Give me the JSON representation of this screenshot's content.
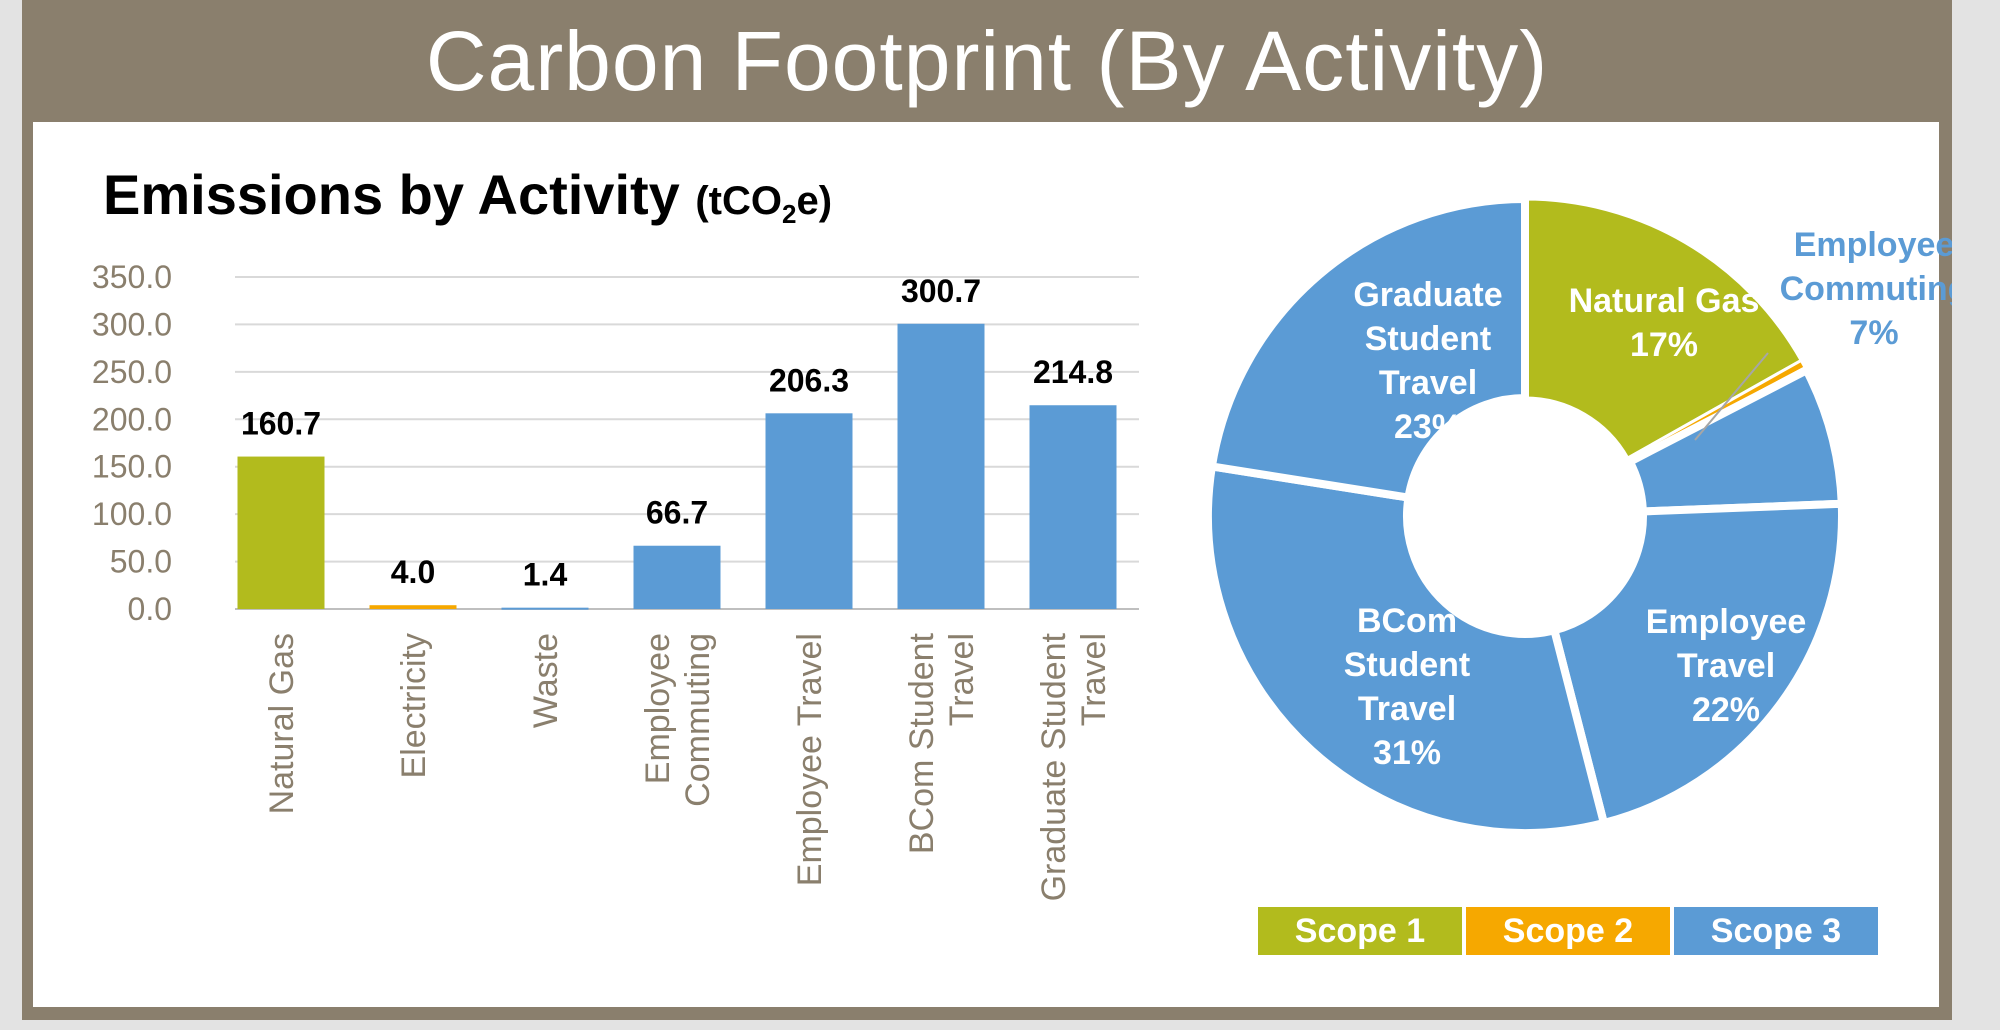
{
  "header": {
    "title": "Carbon Footprint (By Activity)"
  },
  "chart_title": {
    "main": "Emissions by Activity",
    "unit_prefix": "(tCO",
    "unit_sub": "2",
    "unit_suffix": "e)"
  },
  "colors": {
    "scope1": "#b2bb1d",
    "scope2": "#f6a800",
    "scope3": "#5b9bd5",
    "axis_text": "#8a7f6d",
    "frame": "#8a7f6d",
    "grid": "#d9d9d9"
  },
  "chart_data": [
    {
      "type": "bar",
      "title": "Emissions by Activity (tCO2e)",
      "categories": [
        "Natural Gas",
        "Electricity",
        "Waste",
        "Employee Commuting",
        "Employee Travel",
        "BCom Student Travel",
        "Graduate Student Travel"
      ],
      "category_lines": [
        [
          "Natural Gas"
        ],
        [
          "Electricity"
        ],
        [
          "Waste"
        ],
        [
          "Employee",
          "Commuting"
        ],
        [
          "Employee Travel"
        ],
        [
          "BCom Student",
          "Travel"
        ],
        [
          "Graduate Student",
          "Travel"
        ]
      ],
      "values": [
        160.7,
        4.0,
        1.4,
        66.7,
        206.3,
        300.7,
        214.8
      ],
      "value_labels": [
        "160.7",
        "4.0",
        "1.4",
        "66.7",
        "206.3",
        "300.7",
        "214.8"
      ],
      "scopes": [
        "Scope 1",
        "Scope 2",
        "Scope 3",
        "Scope 3",
        "Scope 3",
        "Scope 3",
        "Scope 3"
      ],
      "ylim": [
        0,
        350
      ],
      "yticks": [
        "0.0",
        "50.0",
        "100.0",
        "150.0",
        "200.0",
        "250.0",
        "300.0",
        "350.0"
      ],
      "grid": true
    },
    {
      "type": "pie",
      "donut": true,
      "slices": [
        {
          "name": "Natural Gas",
          "value": 160.7,
          "label_lines": [
            "Natural Gas",
            "17%"
          ],
          "scope": "Scope 1"
        },
        {
          "name": "Electricity",
          "value": 4.0,
          "label_lines": [],
          "scope": "Scope 2"
        },
        {
          "name": "Waste",
          "value": 1.4,
          "label_lines": [],
          "scope": "Scope 3"
        },
        {
          "name": "Employee Commuting",
          "value": 66.7,
          "label_lines": [
            "Employee",
            "Commuting",
            "7%"
          ],
          "scope": "Scope 3"
        },
        {
          "name": "Employee Travel",
          "value": 206.3,
          "label_lines": [
            "Employee",
            "Travel",
            "22%"
          ],
          "scope": "Scope 3"
        },
        {
          "name": "BCom Student Travel",
          "value": 300.7,
          "label_lines": [
            "BCom",
            "Student",
            "Travel",
            "31%"
          ],
          "scope": "Scope 3"
        },
        {
          "name": "Graduate Student Travel",
          "value": 214.8,
          "label_lines": [
            "Graduate",
            "Student",
            "Travel",
            "23%"
          ],
          "scope": "Scope 3"
        }
      ]
    }
  ],
  "legend": [
    {
      "label": "Scope 1",
      "color": "#b2bb1d"
    },
    {
      "label": "Scope 2",
      "color": "#f6a800"
    },
    {
      "label": "Scope 3",
      "color": "#5b9bd5"
    }
  ]
}
